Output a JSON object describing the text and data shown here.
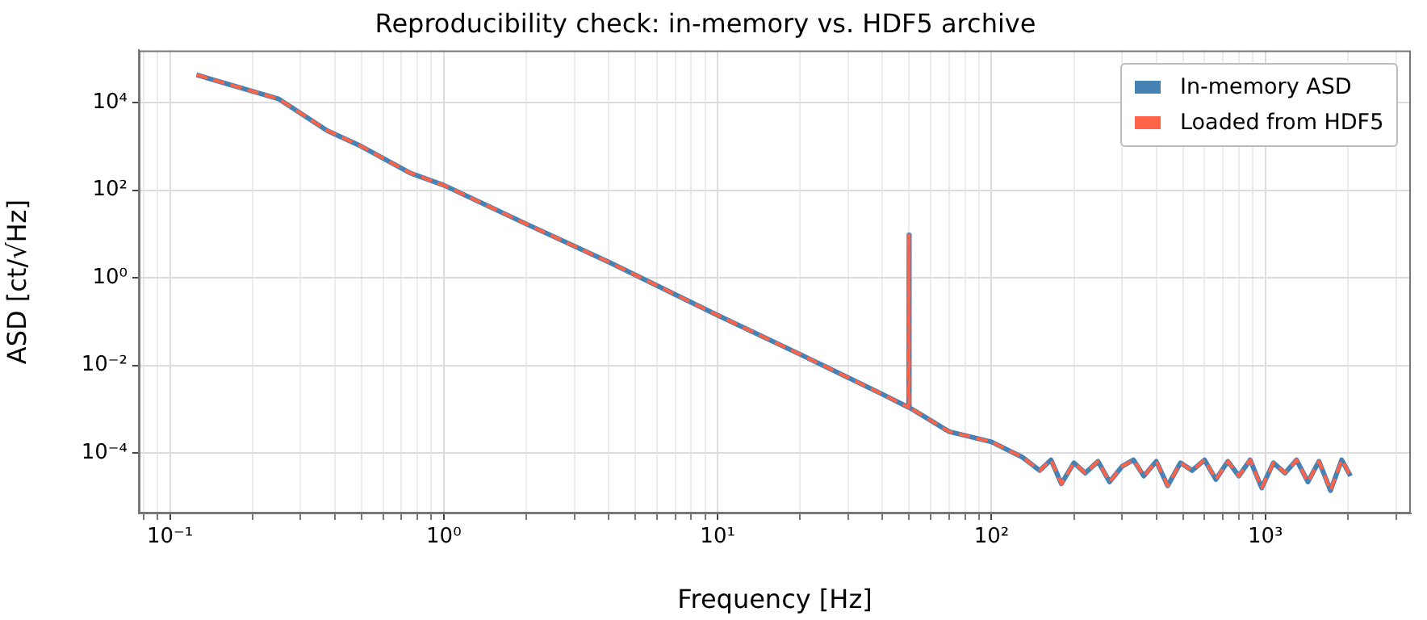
{
  "chart_data": {
    "type": "line",
    "title": "Reproducibility check: in-memory vs. HDF5 archive",
    "xlabel": "Frequency [Hz]",
    "ylabel": "ASD [ct/√Hz]",
    "log": "xy",
    "grid": true,
    "legend": "top right",
    "marker": "none",
    "x": [
      0.125,
      0.25,
      0.375,
      0.5,
      0.75,
      1,
      2,
      4,
      10,
      20,
      40,
      49.9,
      50,
      50.1,
      70,
      100,
      130,
      150,
      165,
      180,
      200,
      220,
      245,
      270,
      300,
      330,
      360,
      400,
      440,
      490,
      540,
      600,
      660,
      730,
      800,
      880,
      970,
      1070,
      1180,
      1300,
      1430,
      1570,
      1730,
      1900,
      2048
    ],
    "xlim": [
      0.077,
      3400
    ],
    "xticks": [
      {
        "value": 0.08,
        "label": null
      },
      {
        "value": 0.09,
        "label": null
      },
      {
        "value": 0.1,
        "label": "10⁻¹"
      },
      {
        "value": 0.2,
        "label": null
      },
      {
        "value": 0.3,
        "label": null
      },
      {
        "value": 0.4,
        "label": null
      },
      {
        "value": 0.5,
        "label": null
      },
      {
        "value": 0.6,
        "label": null
      },
      {
        "value": 0.7,
        "label": null
      },
      {
        "value": 0.8,
        "label": null
      },
      {
        "value": 0.9,
        "label": null
      },
      {
        "value": 1,
        "label": "10⁰"
      },
      {
        "value": 2,
        "label": null
      },
      {
        "value": 3,
        "label": null
      },
      {
        "value": 4,
        "label": null
      },
      {
        "value": 5,
        "label": null
      },
      {
        "value": 6,
        "label": null
      },
      {
        "value": 7,
        "label": null
      },
      {
        "value": 8,
        "label": null
      },
      {
        "value": 9,
        "label": null
      },
      {
        "value": 10,
        "label": "10¹"
      },
      {
        "value": 20,
        "label": null
      },
      {
        "value": 30,
        "label": null
      },
      {
        "value": 40,
        "label": null
      },
      {
        "value": 50,
        "label": null
      },
      {
        "value": 60,
        "label": null
      },
      {
        "value": 70,
        "label": null
      },
      {
        "value": 80,
        "label": null
      },
      {
        "value": 90,
        "label": null
      },
      {
        "value": 100,
        "label": "10²"
      },
      {
        "value": 200,
        "label": null
      },
      {
        "value": 300,
        "label": null
      },
      {
        "value": 400,
        "label": null
      },
      {
        "value": 500,
        "label": null
      },
      {
        "value": 600,
        "label": null
      },
      {
        "value": 700,
        "label": null
      },
      {
        "value": 800,
        "label": null
      },
      {
        "value": 900,
        "label": null
      },
      {
        "value": 1000,
        "label": "10³"
      },
      {
        "value": 2000,
        "label": null
      },
      {
        "value": 3000,
        "label": null
      }
    ],
    "ylim": [
      4.2e-06,
      155000.0
    ],
    "yticks": [
      {
        "value": 0.0001,
        "label": "10⁻⁴"
      },
      {
        "value": 0.01,
        "label": "10⁻²"
      },
      {
        "value": 1,
        "label": "10⁰"
      },
      {
        "value": 100,
        "label": "10²"
      },
      {
        "value": 10000,
        "label": "10⁴"
      }
    ],
    "series": [
      {
        "name": "In-memory ASD",
        "color": "#4682b4",
        "line_style": "solid",
        "values": [
          43000,
          12000,
          2300,
          1000,
          250,
          130,
          17,
          2.3,
          0.14,
          0.018,
          0.0022,
          0.0011,
          9.5,
          0.0011,
          0.00031,
          0.00018,
          8e-05,
          4e-05,
          7e-05,
          2e-05,
          6e-05,
          3.5e-05,
          6.5e-05,
          2.2e-05,
          5e-05,
          7e-05,
          3e-05,
          6.5e-05,
          1.8e-05,
          6e-05,
          4e-05,
          7e-05,
          2.5e-05,
          6.5e-05,
          3e-05,
          7e-05,
          1.6e-05,
          6e-05,
          3.5e-05,
          7e-05,
          2.2e-05,
          6.5e-05,
          1.4e-05,
          7e-05,
          3e-05
        ]
      },
      {
        "name": "Loaded from HDF5",
        "color": "#ff6347",
        "line_style": "dashed",
        "values": [
          43000,
          12000,
          2300,
          1000,
          250,
          130,
          17,
          2.3,
          0.14,
          0.018,
          0.0022,
          0.0011,
          9.5,
          0.0011,
          0.00031,
          0.00018,
          8e-05,
          4e-05,
          7e-05,
          2e-05,
          6e-05,
          3.5e-05,
          6.5e-05,
          2.2e-05,
          5e-05,
          7e-05,
          3e-05,
          6.5e-05,
          1.8e-05,
          6e-05,
          4e-05,
          7e-05,
          2.5e-05,
          6.5e-05,
          3e-05,
          7e-05,
          1.6e-05,
          6e-05,
          3.5e-05,
          7e-05,
          2.2e-05,
          6.5e-05,
          1.4e-05,
          7e-05,
          3e-05
        ]
      }
    ]
  }
}
